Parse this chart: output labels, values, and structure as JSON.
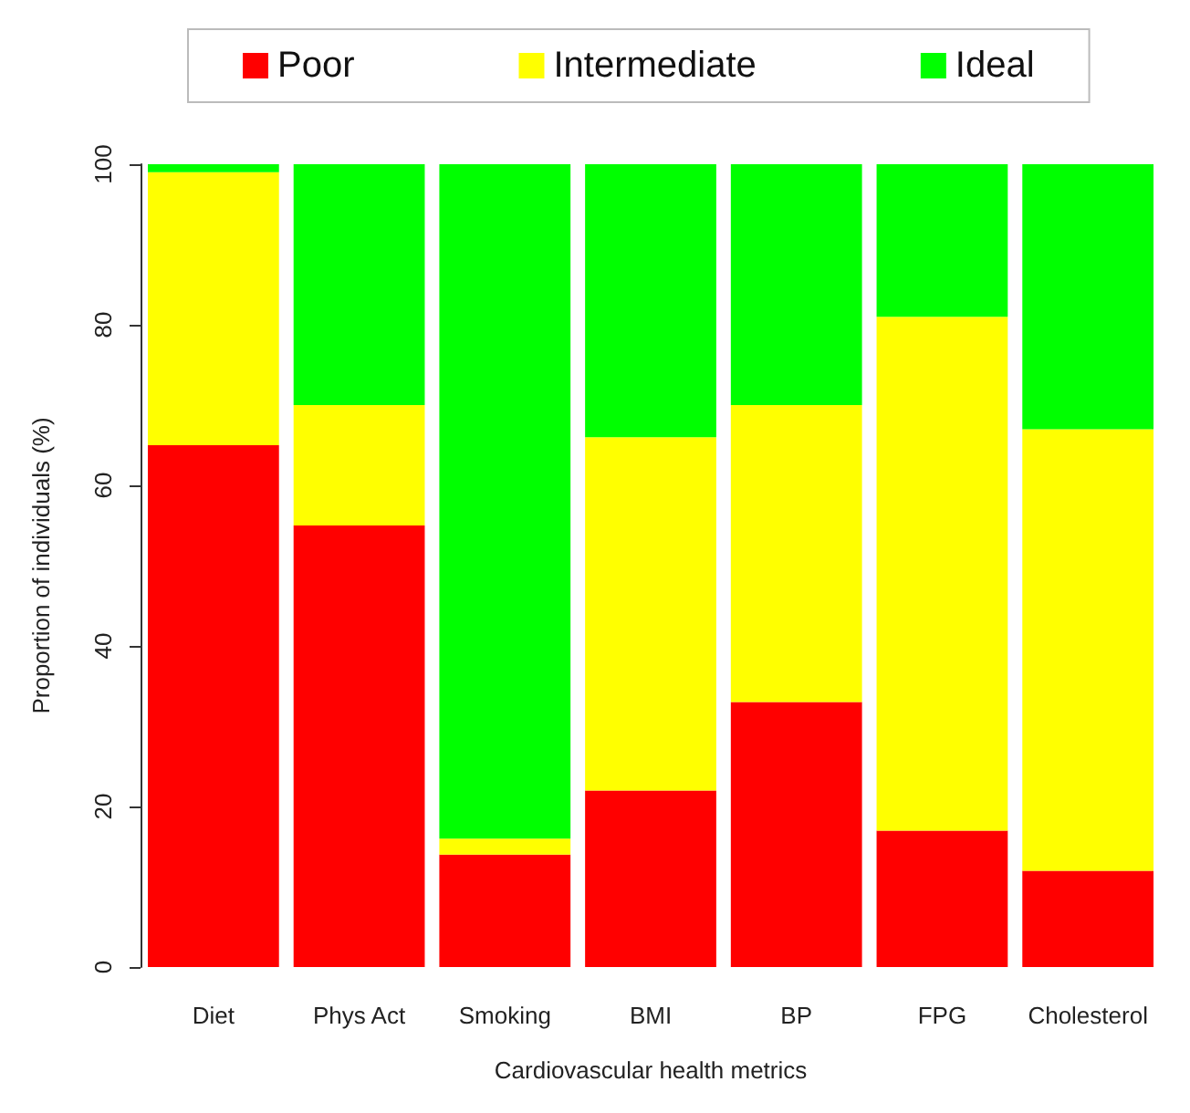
{
  "chart_data": {
    "type": "bar",
    "stacked": true,
    "xlabel": "Cardiovascular health metrics",
    "ylabel": "Proportion of individuals (%)",
    "categories": [
      "Diet",
      "Phys Act",
      "Smoking",
      "BMI",
      "BP",
      "FPG",
      "Cholesterol"
    ],
    "series": [
      {
        "name": "Poor",
        "color": "#ff0000",
        "values": [
          65,
          55,
          14,
          22,
          33,
          17,
          12
        ]
      },
      {
        "name": "Intermediate",
        "color": "#ffff00",
        "values": [
          34,
          15,
          2,
          44,
          37,
          64,
          55
        ]
      },
      {
        "name": "Ideal",
        "color": "#00ff00",
        "values": [
          1,
          30,
          84,
          34,
          30,
          19,
          33
        ]
      }
    ],
    "ylim": [
      0,
      100
    ],
    "yticks": [
      0,
      20,
      40,
      60,
      80,
      100
    ],
    "grid": false,
    "legend": "top"
  }
}
